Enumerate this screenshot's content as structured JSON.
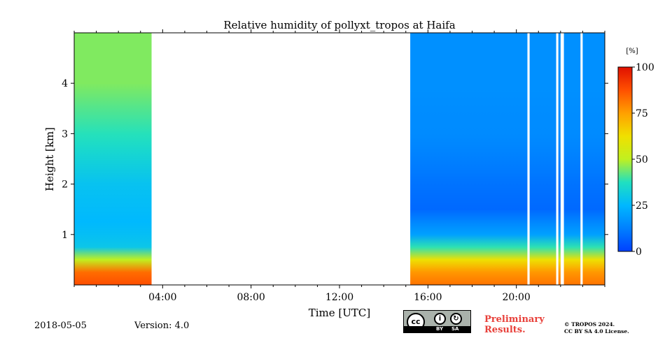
{
  "chart_data": {
    "type": "heatmap",
    "title": "Relative humidity of pollyxt_tropos at Haifa",
    "xlabel": "Time [UTC]",
    "ylabel": "Height [km]",
    "x_ticks": [
      "04:00",
      "08:00",
      "12:00",
      "16:00",
      "20:00"
    ],
    "x_tick_hours": [
      4,
      8,
      12,
      16,
      20
    ],
    "xlim_hours": [
      0,
      24
    ],
    "y_ticks": [
      "1",
      "2",
      "3",
      "4"
    ],
    "y_tick_values": [
      1,
      2,
      3,
      4
    ],
    "ylim_km": [
      0,
      5
    ],
    "colorbar": {
      "unit": "[%]",
      "ticks": [
        "0",
        "25",
        "50",
        "75",
        "100"
      ],
      "tick_values": [
        0,
        25,
        50,
        75,
        100
      ],
      "range": [
        0,
        100
      ],
      "colormap": "jet"
    },
    "data_segments": [
      {
        "start_hour": 0.0,
        "end_hour": 3.5,
        "profile": [
          [
            0.05,
            88
          ],
          [
            0.3,
            82
          ],
          [
            0.45,
            55
          ],
          [
            0.7,
            30
          ],
          [
            1.2,
            25
          ],
          [
            2.0,
            28
          ],
          [
            3.0,
            38
          ],
          [
            4.0,
            45
          ],
          [
            5.0,
            45
          ]
        ]
      },
      {
        "start_hour": 15.2,
        "end_hour": 24.0,
        "profile": [
          [
            0.05,
            82
          ],
          [
            0.3,
            75
          ],
          [
            0.6,
            55
          ],
          [
            0.9,
            22
          ],
          [
            1.5,
            8
          ],
          [
            2.0,
            10
          ],
          [
            3.0,
            15
          ],
          [
            4.0,
            16
          ],
          [
            5.0,
            16
          ]
        ]
      }
    ],
    "data_gaps_hours": [
      [
        20.5,
        20.6
      ],
      [
        21.8,
        21.9
      ],
      [
        22.0,
        22.15
      ],
      [
        22.9,
        23.0
      ]
    ]
  },
  "footer": {
    "date": "2018-05-05",
    "version": "Version: 4.0",
    "preliminary_line1": "Preliminary",
    "preliminary_line2": "Results.",
    "copyright_line1": "© TROPOS 2024.",
    "copyright_line2": "CC BY SA 4.0 License.",
    "license_badge": {
      "main": "cc",
      "by": "BY",
      "sa": "SA"
    }
  },
  "colors": {
    "preliminary": "#e8403a",
    "badge_background": "#aab2ab"
  }
}
